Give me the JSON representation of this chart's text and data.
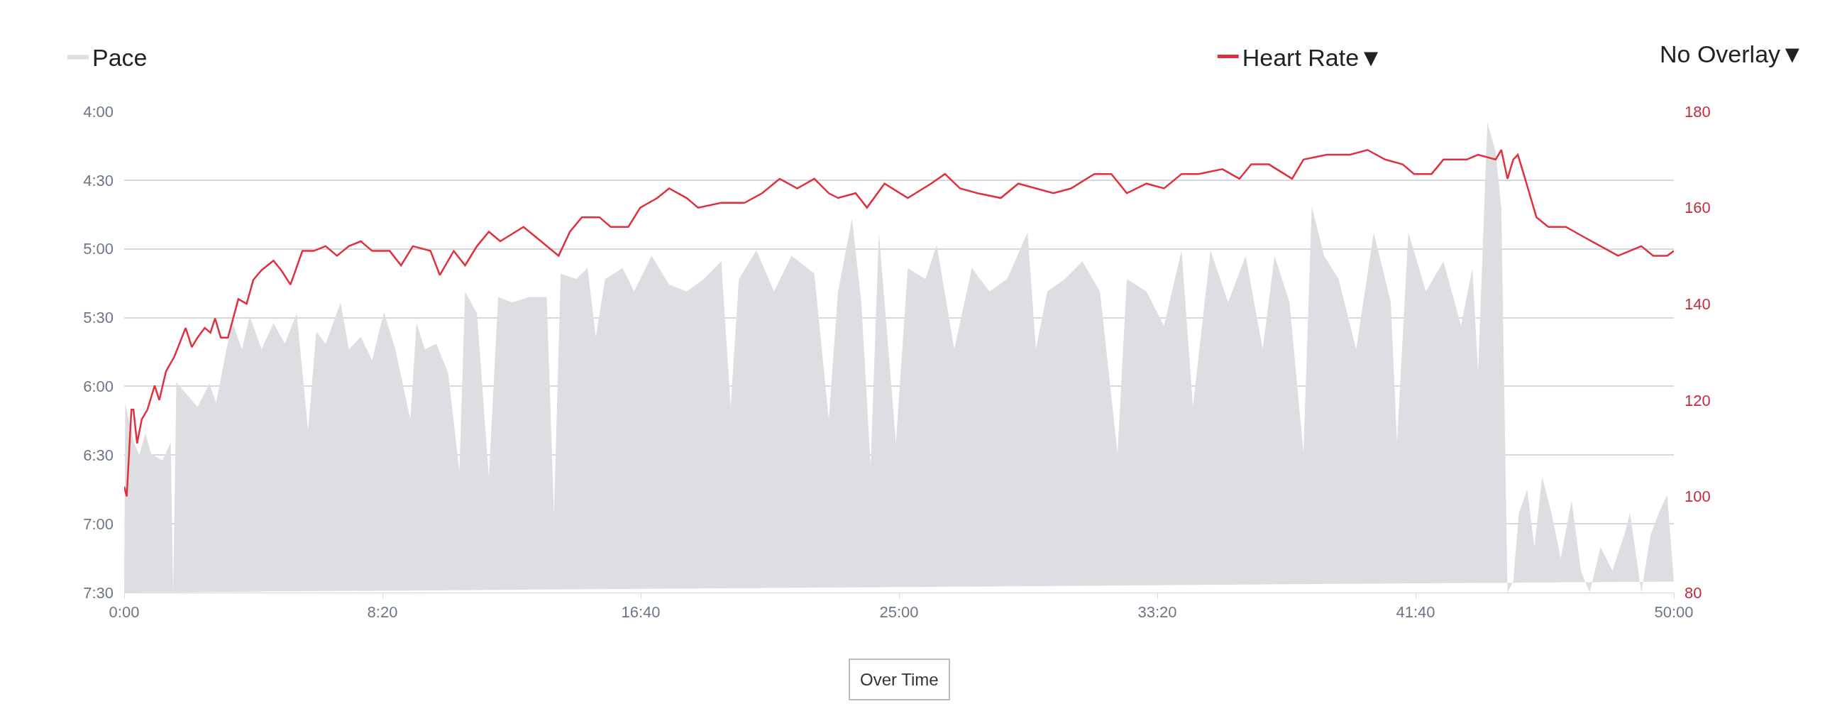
{
  "chart_data": {
    "type": "area",
    "xlim": [
      0,
      3000
    ],
    "xticks": [
      {
        "value": 0,
        "label": "0:00"
      },
      {
        "value": 500,
        "label": "8:20"
      },
      {
        "value": 1000,
        "label": "16:40"
      },
      {
        "value": 1500,
        "label": "25:00"
      },
      {
        "value": 2000,
        "label": "33:20"
      },
      {
        "value": 2500,
        "label": "41:40"
      },
      {
        "value": 3000,
        "label": "50:00"
      }
    ],
    "ylim": [
      7.5,
      4.0
    ],
    "yticks": [
      {
        "value": 4.0,
        "label": "4:00"
      },
      {
        "value": 4.5,
        "label": "4:30"
      },
      {
        "value": 5.0,
        "label": "5:00"
      },
      {
        "value": 5.5,
        "label": "5:30"
      },
      {
        "value": 6.0,
        "label": "6:00"
      },
      {
        "value": 6.5,
        "label": "6:30"
      },
      {
        "value": 7.0,
        "label": "7:00"
      },
      {
        "value": 7.5,
        "label": "7:30"
      }
    ],
    "y2lim": [
      80,
      180
    ],
    "y2ticks": [
      80,
      100,
      120,
      140,
      160,
      180
    ],
    "grid": "y",
    "legend": "top",
    "annotations": [
      "No Overlay▼",
      "Over Time"
    ],
    "series": [
      {
        "name": "Pace",
        "color": "#dcdee2",
        "x": [
          0,
          2,
          18,
          29,
          41,
          52,
          74,
          90,
          95,
          101,
          119,
          142,
          165,
          178,
          198,
          210,
          228,
          243,
          266,
          289,
          311,
          334,
          356,
          372,
          390,
          419,
          435,
          458,
          480,
          503,
          525,
          554,
          566,
          582,
          604,
          627,
          649,
          660,
          683,
          706,
          724,
          751,
          784,
          818,
          832,
          845,
          875,
          897,
          913,
          931,
          965,
          987,
          1021,
          1055,
          1089,
          1122,
          1156,
          1174,
          1190,
          1224,
          1258,
          1292,
          1336,
          1364,
          1382,
          1409,
          1427,
          1445,
          1461,
          1494,
          1517,
          1551,
          1573,
          1607,
          1641,
          1675,
          1709,
          1749,
          1765,
          1787,
          1821,
          1855,
          1889,
          1923,
          1941,
          1979,
          2013,
          2047,
          2069,
          2103,
          2137,
          2171,
          2204,
          2227,
          2256,
          2283,
          2299,
          2323,
          2351,
          2385,
          2419,
          2452,
          2464,
          2486,
          2520,
          2554,
          2588,
          2610,
          2621,
          2639,
          2655,
          2666,
          2678,
          2689,
          2700,
          2716,
          2730,
          2745,
          2763,
          2781,
          2802,
          2820,
          2837,
          2858,
          2881,
          2904,
          2915,
          2937,
          2955,
          2971,
          2987,
          3000
        ],
        "values": [
          7.5,
          6.12,
          6.4,
          6.5,
          6.34,
          6.49,
          6.54,
          6.41,
          7.5,
          5.97,
          6.05,
          6.15,
          5.98,
          6.12,
          5.73,
          5.54,
          5.73,
          5.49,
          5.73,
          5.54,
          5.69,
          5.47,
          6.32,
          5.6,
          5.69,
          5.39,
          5.73,
          5.64,
          5.81,
          5.46,
          5.73,
          6.24,
          5.54,
          5.73,
          5.69,
          5.9,
          6.62,
          5.31,
          5.47,
          6.66,
          5.35,
          5.39,
          5.35,
          5.35,
          6.93,
          5.18,
          5.22,
          5.14,
          5.64,
          5.22,
          5.14,
          5.31,
          5.05,
          5.26,
          5.31,
          5.22,
          5.09,
          6.15,
          5.22,
          5.01,
          5.31,
          5.05,
          5.18,
          6.24,
          5.31,
          4.78,
          5.39,
          6.58,
          4.88,
          6.41,
          5.14,
          5.22,
          4.97,
          5.73,
          5.14,
          5.31,
          5.22,
          4.88,
          5.73,
          5.31,
          5.22,
          5.09,
          5.31,
          6.49,
          5.22,
          5.31,
          5.56,
          5.01,
          6.15,
          5.01,
          5.39,
          5.05,
          5.73,
          5.05,
          5.39,
          6.49,
          4.69,
          5.05,
          5.22,
          5.73,
          4.88,
          5.39,
          6.41,
          4.88,
          5.31,
          5.09,
          5.56,
          5.14,
          5.9,
          4.08,
          4.29,
          4.71,
          7.5,
          7.42,
          6.92,
          6.75,
          7.17,
          6.66,
          6.92,
          7.25,
          6.83,
          7.34,
          7.5,
          7.17,
          7.34,
          7.08,
          6.92,
          7.5,
          7.08,
          6.92,
          6.79,
          7.42
        ]
      },
      {
        "name": "Heart Rate▼",
        "type": "line",
        "axis": "y2",
        "color": "#e0303f",
        "x": [
          0,
          5,
          14,
          18,
          25,
          34,
          45,
          59,
          68,
          81,
          97,
          119,
          131,
          142,
          156,
          167,
          176,
          187,
          201,
          221,
          237,
          250,
          266,
          289,
          304,
          322,
          345,
          367,
          390,
          412,
          435,
          458,
          480,
          514,
          536,
          559,
          593,
          611,
          638,
          660,
          683,
          706,
          728,
          773,
          807,
          841,
          863,
          886,
          920,
          942,
          976,
          999,
          1032,
          1055,
          1089,
          1111,
          1156,
          1201,
          1235,
          1269,
          1303,
          1336,
          1364,
          1382,
          1416,
          1438,
          1472,
          1517,
          1562,
          1589,
          1618,
          1652,
          1697,
          1731,
          1765,
          1799,
          1833,
          1878,
          1911,
          1941,
          1979,
          2013,
          2047,
          2080,
          2126,
          2159,
          2182,
          2216,
          2261,
          2283,
          2328,
          2373,
          2407,
          2441,
          2475,
          2497,
          2531,
          2554,
          2599,
          2621,
          2655,
          2666,
          2678,
          2689,
          2698,
          2712,
          2734,
          2757,
          2791,
          2824,
          2858,
          2892,
          2937,
          2960,
          2987,
          3000
        ],
        "values": [
          102,
          100,
          118,
          118,
          111,
          116,
          118,
          123,
          120,
          126,
          129,
          135,
          131,
          133,
          135,
          134,
          137,
          133,
          133,
          141,
          140,
          145,
          147,
          149,
          147,
          144,
          151,
          151,
          152,
          150,
          152,
          153,
          151,
          151,
          148,
          152,
          151,
          146,
          151,
          148,
          152,
          155,
          153,
          156,
          153,
          150,
          155,
          158,
          158,
          156,
          156,
          160,
          162,
          164,
          162,
          160,
          161,
          161,
          163,
          166,
          164,
          166,
          163,
          162,
          163,
          160,
          165,
          162,
          165,
          167,
          164,
          163,
          162,
          165,
          164,
          163,
          164,
          167,
          167,
          163,
          165,
          164,
          167,
          167,
          168,
          166,
          169,
          169,
          166,
          170,
          171,
          171,
          172,
          170,
          169,
          167,
          167,
          170,
          170,
          171,
          170,
          172,
          166,
          170,
          171,
          166,
          158,
          156,
          156,
          154,
          152,
          150,
          152,
          150,
          150,
          151
        ]
      }
    ]
  }
}
